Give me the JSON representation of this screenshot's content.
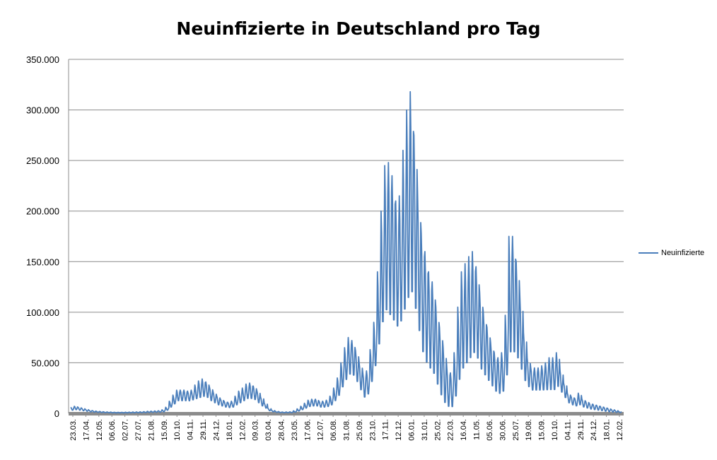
{
  "chart_data": {
    "type": "line",
    "title": "Neuinfizierte in Deutschland pro Tag",
    "xlabel": "",
    "ylabel": "",
    "ylim": [
      0,
      350000
    ],
    "y_ticks": [
      0,
      50000,
      100000,
      150000,
      200000,
      250000,
      300000,
      350000
    ],
    "y_tick_labels": [
      "0",
      "50.000",
      "100.000",
      "150.000",
      "200.000",
      "250.000",
      "300.000",
      "350.000"
    ],
    "x_tick_labels": [
      "23.03.",
      "17.04.",
      "12.05.",
      "06.06.",
      "02.07.",
      "27.07.",
      "21.08.",
      "15.09.",
      "10.10.",
      "04.11.",
      "29.11.",
      "24.12.",
      "18.01.",
      "12.02.",
      "09.03.",
      "03.04.",
      "28.04.",
      "23.05.",
      "17.06.",
      "12.07.",
      "06.08.",
      "31.08.",
      "25.09.",
      "23.10.",
      "17.11.",
      "12.12.",
      "06.01.",
      "31.01.",
      "25.02.",
      "22.03.",
      "16.04.",
      "11.05.",
      "05.06.",
      "30.06.",
      "25.07.",
      "19.08.",
      "15.09.",
      "10.10.",
      "04.11.",
      "29.11.",
      "24.12.",
      "18.01.",
      "12.02."
    ],
    "grid": true,
    "legend_position": "right",
    "week_count": 151,
    "series": [
      {
        "name": "Neuinfizierte",
        "color": "#4a7ebb",
        "weekly_peak": [
          6000,
          7000,
          6000,
          5000,
          4000,
          3000,
          2500,
          2000,
          1800,
          1500,
          1300,
          1200,
          1000,
          1000,
          1000,
          1100,
          1200,
          1300,
          1400,
          1500,
          1700,
          2000,
          2200,
          2400,
          2600,
          3500,
          6000,
          12000,
          18000,
          23000,
          23000,
          23000,
          22000,
          23000,
          28000,
          32000,
          34000,
          31000,
          26000,
          21000,
          17000,
          14000,
          12000,
          11000,
          12000,
          17000,
          22000,
          25000,
          29000,
          30000,
          27000,
          22000,
          16000,
          10000,
          5000,
          3000,
          2000,
          1500,
          1200,
          1300,
          1500,
          2500,
          4500,
          7000,
          10000,
          13000,
          14000,
          14000,
          12000,
          12000,
          13000,
          17000,
          25000,
          35000,
          50000,
          65000,
          75000,
          72000,
          62000,
          50000,
          40000,
          42000,
          63000,
          90000,
          140000,
          200000,
          245000,
          248000,
          235000,
          210000,
          215000,
          260000,
          300000,
          318000,
          275000,
          215000,
          178000,
          160000,
          140000,
          130000,
          105000,
          85000,
          65000,
          45000,
          40000,
          60000,
          105000,
          140000,
          148000,
          155000,
          160000,
          145000,
          120000,
          100000,
          85000,
          70000,
          60000,
          55000,
          60000,
          97000,
          175000,
          175000,
          150000,
          115000,
          80000,
          55000,
          45000,
          45000,
          45000,
          47000,
          50000,
          55000,
          55000,
          60000,
          42000,
          30000,
          20000,
          17000,
          15000,
          20000,
          14000,
          12000,
          10000,
          9000,
          8000,
          7000,
          6000,
          5000,
          4000,
          3000,
          2000
        ],
        "weekly_low": [
          3000,
          3500,
          3000,
          2500,
          2000,
          1500,
          1200,
          1000,
          800,
          700,
          600,
          500,
          400,
          400,
          400,
          450,
          500,
          550,
          600,
          700,
          800,
          900,
          1000,
          1100,
          1200,
          1500,
          3000,
          6000,
          9000,
          12000,
          12000,
          12000,
          12000,
          13000,
          14000,
          15000,
          16000,
          15000,
          12000,
          10000,
          8000,
          7000,
          6000,
          5500,
          6000,
          8000,
          10000,
          12000,
          14000,
          14000,
          13000,
          10000,
          7000,
          5000,
          2500,
          1500,
          1000,
          700,
          600,
          650,
          700,
          1200,
          2200,
          3500,
          5000,
          6500,
          7000,
          7000,
          6000,
          6000,
          6500,
          8000,
          12000,
          17000,
          25000,
          32000,
          37000,
          36000,
          30000,
          22000,
          15000,
          18000,
          30000,
          45000,
          65000,
          85000,
          95000,
          90000,
          85000,
          80000,
          85000,
          95000,
          105000,
          110000,
          95000,
          75000,
          55000,
          45000,
          40000,
          35000,
          25000,
          15000,
          8000,
          5000,
          5000,
          15000,
          30000,
          40000,
          45000,
          50000,
          55000,
          50000,
          40000,
          35000,
          30000,
          25000,
          20000,
          18000,
          20000,
          35000,
          55000,
          55000,
          50000,
          40000,
          30000,
          25000,
          22000,
          22000,
          22000,
          22000,
          22000,
          22000,
          22000,
          25000,
          20000,
          15000,
          10000,
          8000,
          7000,
          8000,
          6000,
          5000,
          4000,
          3500,
          3000,
          2500,
          2000,
          1500,
          1200,
          1000,
          800
        ]
      }
    ]
  }
}
